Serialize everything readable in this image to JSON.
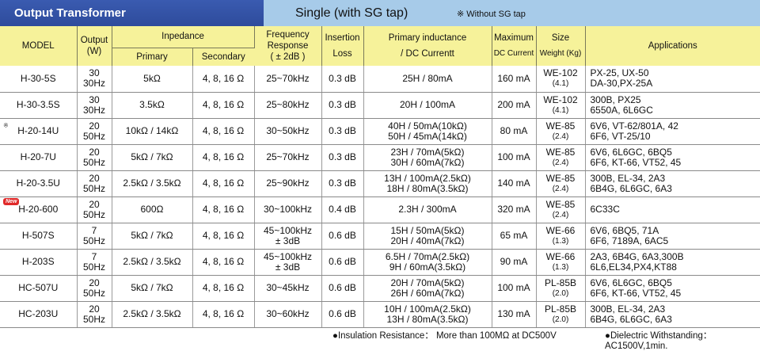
{
  "header": {
    "title": "Output Transformer",
    "subtitle": "Single (with SG tap)",
    "note": "※ Without SG tap"
  },
  "columns": {
    "model": "MODEL",
    "output": "Output",
    "output_unit": "(W)",
    "impedance": "Inpedance",
    "primary": "Primary",
    "secondary": "Secondary",
    "freq1": "Frequency",
    "freq2": "Response",
    "freq3": "( ± 2dB )",
    "ins1": "Insertion",
    "ins2": "Loss",
    "ind1": "Primary inductance",
    "ind2": "/ DC Currentt",
    "max1": "Maximum",
    "max2": "DC Current",
    "size1": "Size",
    "size2": "Weight (Kg)",
    "apps": "Applications"
  },
  "rows": [
    {
      "model": "H-30-5S",
      "mark": "",
      "w": "30",
      "hz": "30Hz",
      "primary": "5kΩ",
      "secondary": "4, 8, 16 Ω",
      "freq1": "25~70kHz",
      "freq2": "",
      "loss": "0.3 dB",
      "ind1": "25H / 80mA",
      "ind2": "",
      "dc": "160 mA",
      "size": "WE-102",
      "weight": "(4.1)",
      "app1": "PX-25, UX-50",
      "app2": "DA-30,PX-25A"
    },
    {
      "model": "H-30-3.5S",
      "mark": "",
      "w": "30",
      "hz": "30Hz",
      "primary": "3.5kΩ",
      "secondary": "4, 8, 16 Ω",
      "freq1": "25~80kHz",
      "freq2": "",
      "loss": "0.3 dB",
      "ind1": "20H / 100mA",
      "ind2": "",
      "dc": "200 mA",
      "size": "WE-102",
      "weight": "(4.1)",
      "app1": "300B, PX25",
      "app2": "6550A, 6L6GC"
    },
    {
      "model": "H-20-14U",
      "mark": "※",
      "w": "20",
      "hz": "50Hz",
      "primary": "10kΩ / 14kΩ",
      "secondary": "4, 8, 16 Ω",
      "freq1": "30~50kHz",
      "freq2": "",
      "loss": "0.3 dB",
      "ind1": "40H / 50mA(10kΩ)",
      "ind2": "50H / 45mA(14kΩ)",
      "dc": "80 mA",
      "size": "WE-85",
      "weight": "(2.4)",
      "app1": "6V6, VT-62/801A, 42",
      "app2": "6F6, VT-25/10"
    },
    {
      "model": "H-20-7U",
      "mark": "",
      "w": "20",
      "hz": "50Hz",
      "primary": "5kΩ / 7kΩ",
      "secondary": "4, 8, 16 Ω",
      "freq1": "25~70kHz",
      "freq2": "",
      "loss": "0.3 dB",
      "ind1": "23H / 70mA(5kΩ)",
      "ind2": "30H / 60mA(7kΩ)",
      "dc": "100 mA",
      "size": "WE-85",
      "weight": "(2.4)",
      "app1": "6V6, 6L6GC, 6BQ5",
      "app2": "6F6, KT-66, VT52, 45"
    },
    {
      "model": "H-20-3.5U",
      "mark": "",
      "w": "20",
      "hz": "50Hz",
      "primary": "2.5kΩ / 3.5kΩ",
      "secondary": "4, 8, 16 Ω",
      "freq1": "25~90kHz",
      "freq2": "",
      "loss": "0.3 dB",
      "ind1": "13H / 100mA(2.5kΩ)",
      "ind2": "18H / 80mA(3.5kΩ)",
      "dc": "140 mA",
      "size": "WE-85",
      "weight": "(2.4)",
      "app1": "300B, EL-34, 2A3",
      "app2": "6B4G, 6L6GC, 6A3"
    },
    {
      "model": "H-20-600",
      "mark": "New",
      "w": "20",
      "hz": "50Hz",
      "primary": "600Ω",
      "secondary": "4, 8, 16 Ω",
      "freq1": "30~100kHz",
      "freq2": "",
      "loss": "0.4 dB",
      "ind1": "2.3H / 300mA",
      "ind2": "",
      "dc": "320 mA",
      "size": "WE-85",
      "weight": "(2.4)",
      "app1": "6C33C",
      "app2": ""
    },
    {
      "model": "H-507S",
      "mark": "",
      "w": "7",
      "hz": "50Hz",
      "primary": "5kΩ / 7kΩ",
      "secondary": "4, 8, 16 Ω",
      "freq1": "45~100kHz",
      "freq2": "± 3dB",
      "loss": "0.6 dB",
      "ind1": "15H / 50mA(5kΩ)",
      "ind2": "20H / 40mA(7kΩ)",
      "dc": "65 mA",
      "size": "WE-66",
      "weight": "(1.3)",
      "app1": "6V6, 6BQ5, 71A",
      "app2": "6F6, 7189A, 6AC5"
    },
    {
      "model": "H-203S",
      "mark": "",
      "w": "7",
      "hz": "50Hz",
      "primary": "2.5kΩ / 3.5kΩ",
      "secondary": "4, 8, 16 Ω",
      "freq1": "45~100kHz",
      "freq2": "± 3dB",
      "loss": "0.6 dB",
      "ind1": "6.5H / 70mA(2.5kΩ)",
      "ind2": "9H / 60mA(3.5kΩ)",
      "dc": "90 mA",
      "size": "WE-66",
      "weight": "(1.3)",
      "app1": "2A3, 6B4G, 6A3,300B",
      "app2": "6L6,EL34,PX4,KT88"
    },
    {
      "model": "HC-507U",
      "mark": "",
      "w": "20",
      "hz": "50Hz",
      "primary": "5kΩ / 7kΩ",
      "secondary": "4, 8, 16 Ω",
      "freq1": "30~45kHz",
      "freq2": "",
      "loss": "0.6 dB",
      "ind1": "20H / 70mA(5kΩ)",
      "ind2": "26H / 60mA(7kΩ)",
      "dc": "100 mA",
      "size": "PL-85B",
      "weight": "(2.0)",
      "app1": "6V6, 6L6GC, 6BQ5",
      "app2": "6F6, KT-66, VT52, 45"
    },
    {
      "model": "HC-203U",
      "mark": "",
      "w": "20",
      "hz": "50Hz",
      "primary": "2.5kΩ / 3.5kΩ",
      "secondary": "4, 8, 16 Ω",
      "freq1": "30~60kHz",
      "freq2": "",
      "loss": "0.6 dB",
      "ind1": "10H / 100mA(2.5kΩ)",
      "ind2": "13H / 80mA(3.5kΩ)",
      "dc": "130 mA",
      "size": "PL-85B",
      "weight": "(2.0)",
      "app1": "300B, EL-34, 2A3",
      "app2": "6B4G, 6L6GC, 6A3"
    }
  ],
  "footer": {
    "insulation": "●Insulation Resistance： More than 100MΩ at DC500V",
    "dielectric": "●Dielectric Withstanding： AC1500V,1min."
  },
  "colors": {
    "title_bar": "#2e4b9c",
    "subtitle_bar": "#a7cbe9",
    "header_fill": "#f6f29a",
    "new_badge": "#e02a2a"
  }
}
